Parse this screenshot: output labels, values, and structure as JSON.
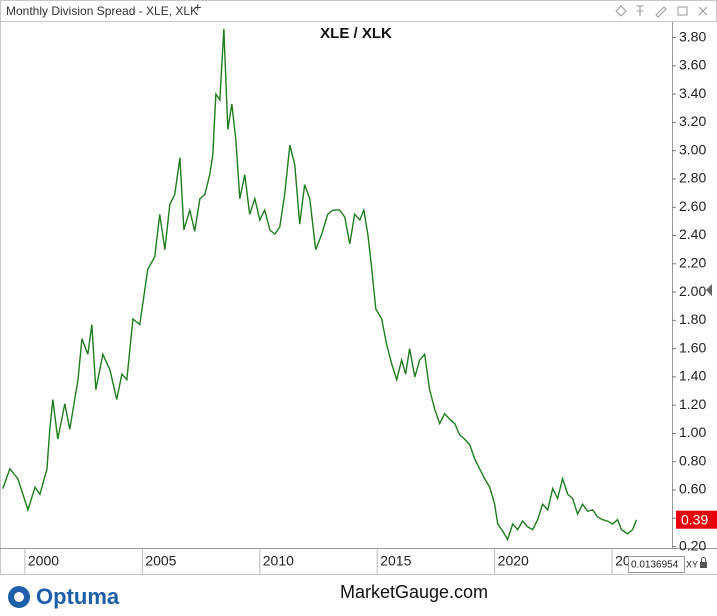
{
  "header": {
    "title": "Monthly Division Spread - XLE, XLK",
    "add": "+"
  },
  "chart_data": {
    "type": "line",
    "title": "XLE / XLK",
    "color": "#1f7d1f",
    "x": [
      1999.06,
      1999.36,
      1999.7,
      2000.13,
      2000.43,
      2000.64,
      2000.94,
      2001.06,
      2001.19,
      2001.4,
      2001.7,
      2001.91,
      2002.26,
      2002.43,
      2002.68,
      2002.85,
      2003.02,
      2003.32,
      2003.62,
      2003.91,
      2004.13,
      2004.34,
      2004.6,
      2004.89,
      2005.23,
      2005.53,
      2005.74,
      2005.96,
      2006.17,
      2006.38,
      2006.6,
      2006.77,
      2007.02,
      2007.23,
      2007.45,
      2007.66,
      2007.87,
      2008.0,
      2008.13,
      2008.3,
      2008.47,
      2008.64,
      2008.81,
      2008.98,
      2009.15,
      2009.36,
      2009.57,
      2009.79,
      2010.0,
      2010.21,
      2010.43,
      2010.64,
      2010.85,
      2011.06,
      2011.28,
      2011.49,
      2011.7,
      2011.91,
      2012.13,
      2012.38,
      2012.64,
      2012.89,
      2013.11,
      2013.4,
      2013.62,
      2013.83,
      2014.04,
      2014.26,
      2014.43,
      2014.6,
      2014.77,
      2014.94,
      2015.19,
      2015.4,
      2015.62,
      2015.83,
      2016.04,
      2016.21,
      2016.38,
      2016.6,
      2016.81,
      2017.02,
      2017.23,
      2017.45,
      2017.66,
      2017.87,
      2018.09,
      2018.3,
      2018.51,
      2018.72,
      2018.94,
      2019.15,
      2019.36,
      2019.57,
      2019.79,
      2020.0,
      2020.13,
      2020.34,
      2020.55,
      2020.77,
      2020.98,
      2021.19,
      2021.4,
      2021.62,
      2021.83,
      2022.04,
      2022.26,
      2022.47,
      2022.68,
      2022.89,
      2023.11,
      2023.32,
      2023.53,
      2023.74,
      2023.96,
      2024.17,
      2024.38,
      2024.6,
      2024.81,
      2025.02,
      2025.23,
      2025.4,
      2025.66,
      2025.87,
      2026.04
    ],
    "values": [
      0.61,
      0.75,
      0.68,
      0.46,
      0.62,
      0.57,
      0.75,
      1.03,
      1.24,
      0.96,
      1.21,
      1.03,
      1.38,
      1.67,
      1.56,
      1.77,
      1.31,
      1.56,
      1.45,
      1.24,
      1.42,
      1.38,
      1.81,
      1.77,
      2.16,
      2.25,
      2.55,
      2.3,
      2.62,
      2.69,
      2.95,
      2.44,
      2.58,
      2.43,
      2.66,
      2.69,
      2.83,
      2.97,
      3.4,
      3.36,
      3.86,
      3.15,
      3.33,
      3.08,
      2.66,
      2.83,
      2.55,
      2.66,
      2.51,
      2.58,
      2.44,
      2.41,
      2.46,
      2.69,
      3.04,
      2.9,
      2.48,
      2.76,
      2.66,
      2.3,
      2.41,
      2.55,
      2.58,
      2.58,
      2.53,
      2.34,
      2.55,
      2.51,
      2.58,
      2.41,
      2.16,
      1.88,
      1.81,
      1.63,
      1.49,
      1.38,
      1.52,
      1.42,
      1.6,
      1.4,
      1.52,
      1.56,
      1.31,
      1.17,
      1.07,
      1.14,
      1.1,
      1.07,
      0.99,
      0.96,
      0.92,
      0.82,
      0.75,
      0.68,
      0.62,
      0.5,
      0.36,
      0.31,
      0.25,
      0.36,
      0.32,
      0.38,
      0.34,
      0.32,
      0.39,
      0.5,
      0.46,
      0.61,
      0.54,
      0.68,
      0.57,
      0.54,
      0.43,
      0.5,
      0.45,
      0.46,
      0.41,
      0.39,
      0.38,
      0.36,
      0.39,
      0.32,
      0.29,
      0.32,
      0.39
    ],
    "xlim": [
      1998.94,
      2027.55
    ],
    "xticks": [
      2000,
      2005,
      2010,
      2015,
      2020,
      2025
    ],
    "ylim": [
      0.19,
      3.91
    ],
    "yticks": [
      {
        "value": 0.2,
        "label": "0.20"
      },
      {
        "value": 0.4,
        "label": "0.40"
      },
      {
        "value": 0.6,
        "label": "0.60"
      },
      {
        "value": 0.8,
        "label": "0.80"
      },
      {
        "value": 1.0,
        "label": "1.00"
      },
      {
        "value": 1.2,
        "label": "1.20"
      },
      {
        "value": 1.4,
        "label": "1.40"
      },
      {
        "value": 1.6,
        "label": "1.60"
      },
      {
        "value": 1.8,
        "label": "1.80"
      },
      {
        "value": 2.0,
        "label": "2.00"
      },
      {
        "value": 2.2,
        "label": "2.20"
      },
      {
        "value": 2.4,
        "label": "2.40"
      },
      {
        "value": 2.6,
        "label": "2.60"
      },
      {
        "value": 2.8,
        "label": "2.80"
      },
      {
        "value": 3.0,
        "label": "3.00"
      },
      {
        "value": 3.2,
        "label": "3.20"
      },
      {
        "value": 3.4,
        "label": "3.40"
      },
      {
        "value": 3.6,
        "label": "3.60"
      },
      {
        "value": 3.8,
        "label": "3.80"
      }
    ],
    "last_value_label": "0.39",
    "cursor_value": "0.0136954",
    "scale_mode": "XY"
  },
  "footer": {
    "brand": "Optuma",
    "site": "MarketGauge.com"
  }
}
